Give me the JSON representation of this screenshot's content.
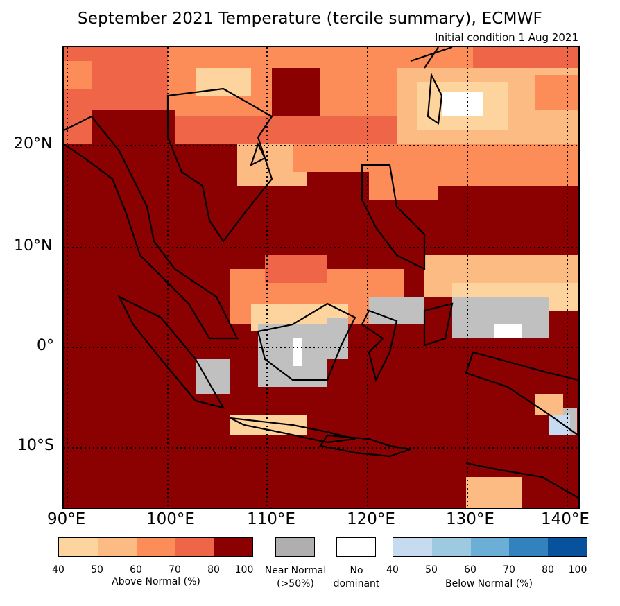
{
  "header": {
    "title": "September 2021 Temperature (tercile summary), ECMWF",
    "subtitle": "Initial condition 1 Aug 2021"
  },
  "map": {
    "lon_range": [
      "90°E",
      "141°E"
    ],
    "lat_range": [
      "16°S",
      "30°N"
    ],
    "dominant_color": "#8b0000",
    "lat_labels": [
      "20°N",
      "10°N",
      "0°",
      "10°S"
    ],
    "lon_labels": [
      "90°E",
      "100°E",
      "110°E",
      "120°E",
      "130°E",
      "140°E"
    ],
    "gridlines": "dotted every 10°",
    "land_outline_color": "#000000"
  },
  "legend": {
    "above": {
      "name": "Above Normal (%)",
      "ticks": [
        "40",
        "50",
        "60",
        "70",
        "80",
        "100"
      ],
      "colors": [
        "#fdd49e",
        "#fdbb84",
        "#fc8d59",
        "#ef6548",
        "#8b0000"
      ]
    },
    "near": {
      "name": "Near Normal (>50%)",
      "line1": "Near Normal",
      "line2": "(>50%)",
      "color": "#b0aeae"
    },
    "none": {
      "name": "No dominant",
      "line1": "No",
      "line2": "dominant",
      "color": "#ffffff"
    },
    "below": {
      "name": "Below Normal (%)",
      "ticks": [
        "40",
        "50",
        "60",
        "70",
        "80",
        "100"
      ],
      "colors": [
        "#c6dbef",
        "#9ecae1",
        "#6baed6",
        "#3182bd",
        "#08519c"
      ]
    }
  }
}
